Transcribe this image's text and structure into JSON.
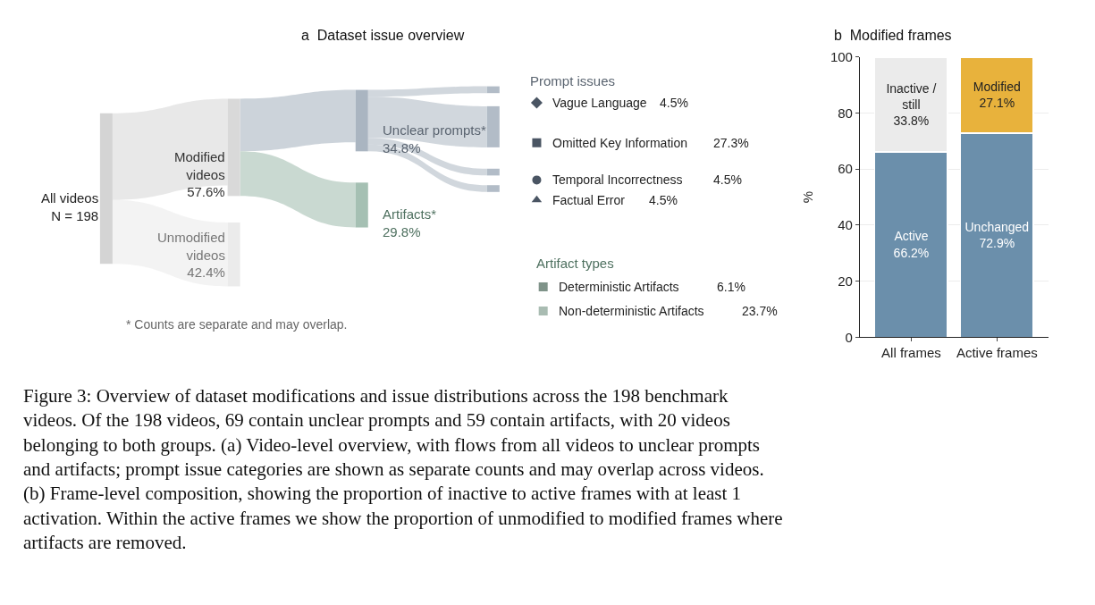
{
  "chart_data": [
    {
      "type": "other",
      "title": "a  Dataset issue overview",
      "value_labels": [
        null,
        "57.6%",
        "42.4%",
        "34.8%",
        "29.8%",
        "4.5%",
        "27.3%",
        "4.5%",
        "4.5%",
        "6.1%",
        "23.7%"
      ],
      "categories": [
        "All videos\nN = 198",
        "Modified\nvideos",
        "Unmodified\nvideos",
        "Unclear prompts*",
        "Artifacts*",
        "Vague Language",
        "Omitted Key Information",
        "Temporal Incorrectness",
        "Factual Error",
        "Deterministic Artifacts",
        "Non-deterministic Artifacts"
      ],
      "values": [
        null,
        57.6,
        42.4,
        34.8,
        29.8,
        4.5,
        27.3,
        4.5,
        4.5,
        6.1,
        23.7
      ],
      "colors": [
        "#d4d4d4",
        "#d9d9d9",
        "#ebebeb",
        "#aab5c1",
        "#a5c0b3",
        "#b2bcc7",
        "#b2bcc7",
        "#b2bcc7",
        "#b2bcc7",
        "#7f9389",
        "#a9bcb2"
      ],
      "annotations": [
        "Prompt issues",
        "Artifact types",
        "* Counts are separate and may overlap.",
        "Figure 3: Overview of dataset modifications and issue distributions across the 198 benchmark\nvideos. Of the 198 videos, 69 contain unclear prompts and 59 contain artifacts, with 20 videos\nbelonging to both groups. (a) Video-level overview, with flows from all videos to unclear prompts\nand artifacts; prompt issue categories are shown as separate counts and may overlap across videos.\n(b) Frame-level composition, showing the proportion of inactive to active frames with at least 1\nactivation. Within the active frames we show the proportion of unmodified to modified frames where\nartifacts are removed."
      ]
    },
    {
      "type": "bar",
      "title": "b  Modified frames",
      "stacked": true,
      "ylabel": "%",
      "ylim": [
        0,
        100
      ],
      "yticks": [
        0,
        20,
        40,
        60,
        80,
        100
      ],
      "grid": "y",
      "categories": [
        "All frames",
        "Active frames"
      ],
      "series": [
        {
          "colors": [
            "#6b8fab",
            "#6b8fab"
          ],
          "values": [
            66.2,
            72.9
          ],
          "value_labels": [
            "Active\n66.2%",
            "Unchanged\n72.9%"
          ]
        },
        {
          "colors": [
            "#ebebeb",
            "#e8b23c"
          ],
          "values": [
            33.8,
            27.1
          ],
          "value_labels": [
            "Inactive /\nstill\n33.8%",
            "Modified\n27.1%"
          ]
        }
      ]
    }
  ]
}
